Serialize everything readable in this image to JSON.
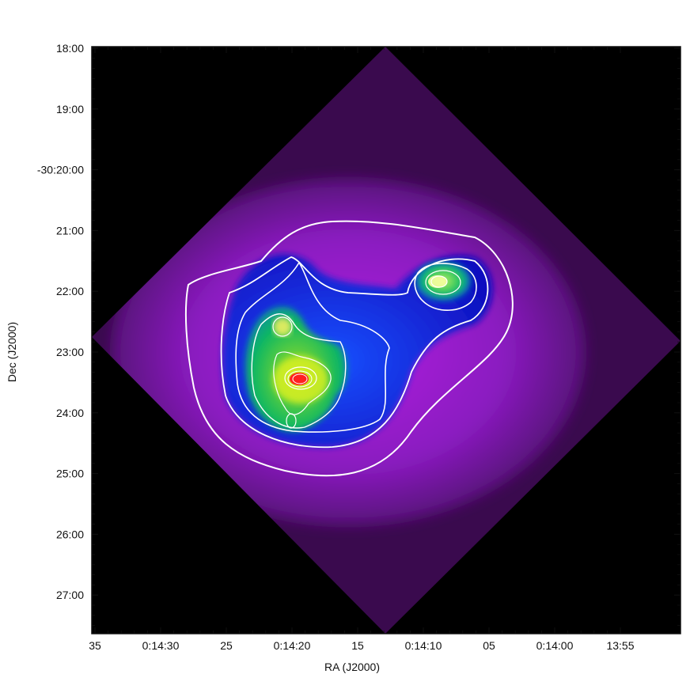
{
  "image": {
    "subject": "false-color sky map with contour overlay",
    "colors": {
      "background": "#000000",
      "outer_emission": "#7a18a8",
      "mid_emission": "#0a1be0",
      "bright_emission": "#10c040",
      "peak_emission": "#e8f020",
      "core": "#ff2020",
      "contours": "#ffffff",
      "axes": "#111111"
    }
  },
  "axes": {
    "xlabel": "RA (J2000)",
    "ylabel": "Dec (J2000)",
    "xticks": [
      "35",
      "0:14:30",
      "25",
      "0:14:20",
      "15",
      "0:14:10",
      "05",
      "0:14:00",
      "13:55"
    ],
    "yticks": [
      "18:00",
      "19:00",
      "-30:20:00",
      "21:00",
      "22:00",
      "23:00",
      "24:00",
      "25:00",
      "26:00",
      "27:00"
    ]
  }
}
